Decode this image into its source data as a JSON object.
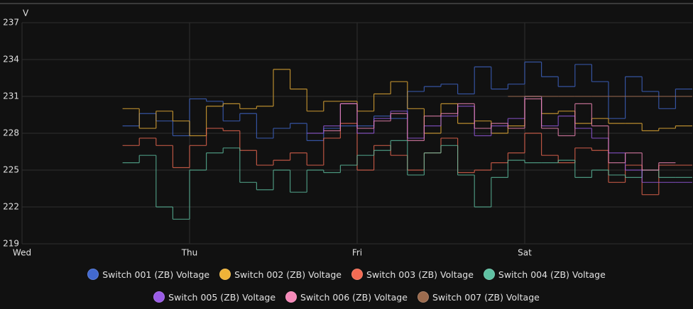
{
  "chart_data": {
    "type": "line",
    "y_label": "V",
    "step": true,
    "grid": true,
    "x": [
      0.6,
      0.7,
      0.8,
      0.9,
      1.0,
      1.1,
      1.2,
      1.3,
      1.4,
      1.5,
      1.6,
      1.7,
      1.8,
      1.9,
      2.0,
      2.1,
      2.2,
      2.3,
      2.4,
      2.5,
      2.6,
      2.7,
      2.8,
      2.9,
      3.0,
      3.1,
      3.2,
      3.3,
      3.4,
      3.5,
      3.6,
      3.7,
      3.8,
      3.9,
      4.0
    ],
    "xlim": [
      0,
      4
    ],
    "xticks": [
      {
        "value": 0,
        "label": "Wed"
      },
      {
        "value": 1,
        "label": "Thu"
      },
      {
        "value": 2,
        "label": "Fri"
      },
      {
        "value": 3,
        "label": "Sat"
      }
    ],
    "ylim": [
      219,
      237
    ],
    "yticks": [
      219,
      222,
      225,
      228,
      231,
      234,
      237
    ],
    "series": [
      {
        "name": "Switch 001 (ZB) Voltage",
        "color": "#4269d0",
        "values": [
          228.6,
          229.6,
          229,
          227.8,
          230.8,
          230.6,
          229,
          229.6,
          227.6,
          228.4,
          228.8,
          227.4,
          228.4,
          228.6,
          228.6,
          229.4,
          229.2,
          231.4,
          231.8,
          232,
          231.2,
          233.4,
          231.6,
          232,
          233.8,
          232.6,
          231.8,
          233.6,
          232.2,
          229.2,
          232.6,
          231.4,
          230,
          231.6,
          231.6
        ]
      },
      {
        "name": "Switch 002 (ZB) Voltage",
        "color": "#efb338",
        "values": [
          230,
          228.4,
          229.8,
          229,
          227.8,
          230.2,
          230.4,
          230,
          230.2,
          233.2,
          231.6,
          229.8,
          230.6,
          230.6,
          229.8,
          231.2,
          232.2,
          230,
          228,
          230.4,
          228.8,
          229,
          228,
          228.6,
          231,
          229.6,
          229.8,
          228.8,
          229.2,
          228.8,
          228.8,
          228.2,
          228.4,
          228.6,
          228.6
        ]
      },
      {
        "name": "Switch 003 (ZB) Voltage",
        "color": "#f36b53",
        "values": [
          227,
          227.6,
          227,
          225.2,
          227,
          228.4,
          228.2,
          226.6,
          225.4,
          225.8,
          226.4,
          225.4,
          227.6,
          228.8,
          225,
          227,
          226.2,
          225,
          226.4,
          227.6,
          224.8,
          225,
          225.6,
          226.4,
          228,
          226.2,
          225.6,
          226.8,
          226.6,
          224,
          225.4,
          223,
          225.4,
          225.4,
          225.4
        ]
      },
      {
        "name": "Switch 004 (ZB) Voltage",
        "color": "#5fc1a3",
        "values": [
          225.6,
          226.2,
          222,
          221,
          225,
          226.4,
          226.8,
          224,
          223.4,
          225,
          223.2,
          225,
          224.8,
          225.4,
          226.2,
          226.6,
          227.4,
          224.6,
          226.4,
          227,
          224.6,
          222,
          224.4,
          225.8,
          225.6,
          225.6,
          225.8,
          224.4,
          225,
          224.6,
          224.4,
          225,
          224.4,
          224.4,
          224.4
        ]
      },
      {
        "name": "Switch 005 (ZB) Voltage",
        "color": "#9a5ce6",
        "values": [
          null,
          null,
          null,
          null,
          null,
          null,
          null,
          null,
          null,
          null,
          null,
          228,
          228.6,
          230.4,
          228,
          229.2,
          229.8,
          227.6,
          228.6,
          229.4,
          230.2,
          227.8,
          228.6,
          229.2,
          231,
          228.6,
          229.4,
          228.4,
          227.6,
          226.4,
          225,
          224,
          224,
          224,
          224
        ]
      },
      {
        "name": "Switch 006 (ZB) Voltage",
        "color": "#f689b9",
        "values": [
          null,
          null,
          null,
          null,
          null,
          null,
          null,
          null,
          null,
          null,
          null,
          null,
          228.2,
          230.4,
          228.4,
          229,
          229.6,
          227.4,
          229.4,
          229.6,
          230.4,
          228.4,
          228.8,
          228.4,
          230.8,
          228.4,
          227.8,
          230.4,
          228.6,
          225.6,
          226.4,
          225,
          225.6,
          null,
          null
        ]
      },
      {
        "name": "Switch 007 (ZB) Voltage",
        "color": "#9c6b4e",
        "values": [
          null,
          null,
          null,
          null,
          null,
          null,
          null,
          null,
          null,
          null,
          null,
          null,
          null,
          null,
          null,
          null,
          null,
          null,
          null,
          null,
          null,
          null,
          null,
          231,
          231,
          231,
          231,
          231,
          231,
          231,
          231,
          231,
          231,
          231,
          231
        ]
      }
    ]
  }
}
